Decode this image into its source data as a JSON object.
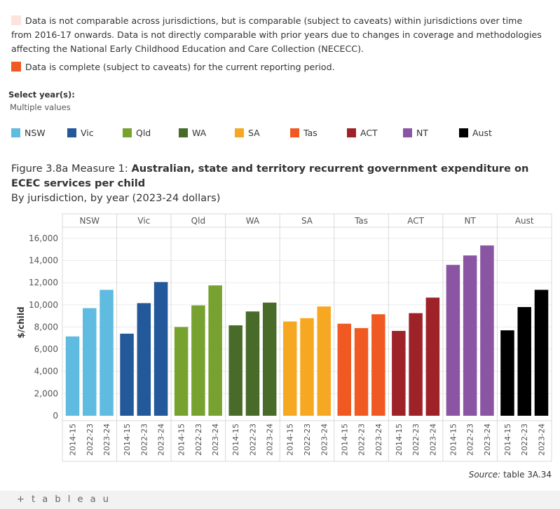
{
  "notes": {
    "comparable": {
      "color": "#fce3dc",
      "text": "Data is not comparable across jurisdictions, but is comparable (subject to caveats) within jurisdictions over time from 2016-17 onwards. Data is not directly comparable with prior years due to changes in coverage and methodologies affecting the National Early Childhood Education and Care Collection (NECECC)."
    },
    "complete": {
      "color": "#f05a22",
      "text": "Data is complete (subject to caveats) for the current reporting period."
    }
  },
  "filter": {
    "title": "Select year(s):",
    "value": "Multiple values"
  },
  "legend": [
    {
      "label": "NSW",
      "color": "#5fbbdf"
    },
    {
      "label": "Vic",
      "color": "#23589a"
    },
    {
      "label": "Qld",
      "color": "#78a22f"
    },
    {
      "label": "WA",
      "color": "#496b2a"
    },
    {
      "label": "SA",
      "color": "#f7a823"
    },
    {
      "label": "Tas",
      "color": "#f05a22"
    },
    {
      "label": "ACT",
      "color": "#9e2329"
    },
    {
      "label": "NT",
      "color": "#8a55a3"
    },
    {
      "label": "Aust",
      "color": "#000000"
    }
  ],
  "figure": {
    "prefix": "Figure 3.8a Measure 1: ",
    "title": "Australian, state and territory recurrent government expenditure on ECEC services per child",
    "subtitle": "By jurisdiction, by year (2023-24 dollars)"
  },
  "chart_data": {
    "type": "bar",
    "ylabel": "$/child",
    "ylim": [
      0,
      17000
    ],
    "yticks": [
      0,
      2000,
      4000,
      6000,
      8000,
      10000,
      12000,
      14000,
      16000
    ],
    "ytick_labels": [
      "0",
      "2,000",
      "4,000",
      "6,000",
      "8,000",
      "10,000",
      "12,000",
      "14,000",
      "16,000"
    ],
    "years": [
      "2014-15",
      "2022-23",
      "2023-24"
    ],
    "groups": [
      {
        "name": "NSW",
        "color": "#5fbbdf",
        "values": [
          7150,
          9700,
          11350
        ]
      },
      {
        "name": "Vic",
        "color": "#23589a",
        "values": [
          7400,
          10150,
          12050
        ]
      },
      {
        "name": "Qld",
        "color": "#78a22f",
        "values": [
          8000,
          9950,
          11750
        ]
      },
      {
        "name": "WA",
        "color": "#496b2a",
        "values": [
          8150,
          9400,
          10200
        ]
      },
      {
        "name": "SA",
        "color": "#f7a823",
        "values": [
          8500,
          8800,
          9850
        ]
      },
      {
        "name": "Tas",
        "color": "#f05a22",
        "values": [
          8300,
          7900,
          9150
        ]
      },
      {
        "name": "ACT",
        "color": "#9e2329",
        "values": [
          7650,
          9250,
          10650
        ]
      },
      {
        "name": "NT",
        "color": "#8a55a3",
        "values": [
          13600,
          14450,
          15350
        ]
      },
      {
        "name": "Aust",
        "color": "#000000",
        "values": [
          7700,
          9800,
          11350
        ]
      }
    ],
    "grid": true
  },
  "source": {
    "label": "Source:",
    "text": "table 3A.34"
  },
  "footer": {
    "logo": "+ t a b l e a u"
  }
}
